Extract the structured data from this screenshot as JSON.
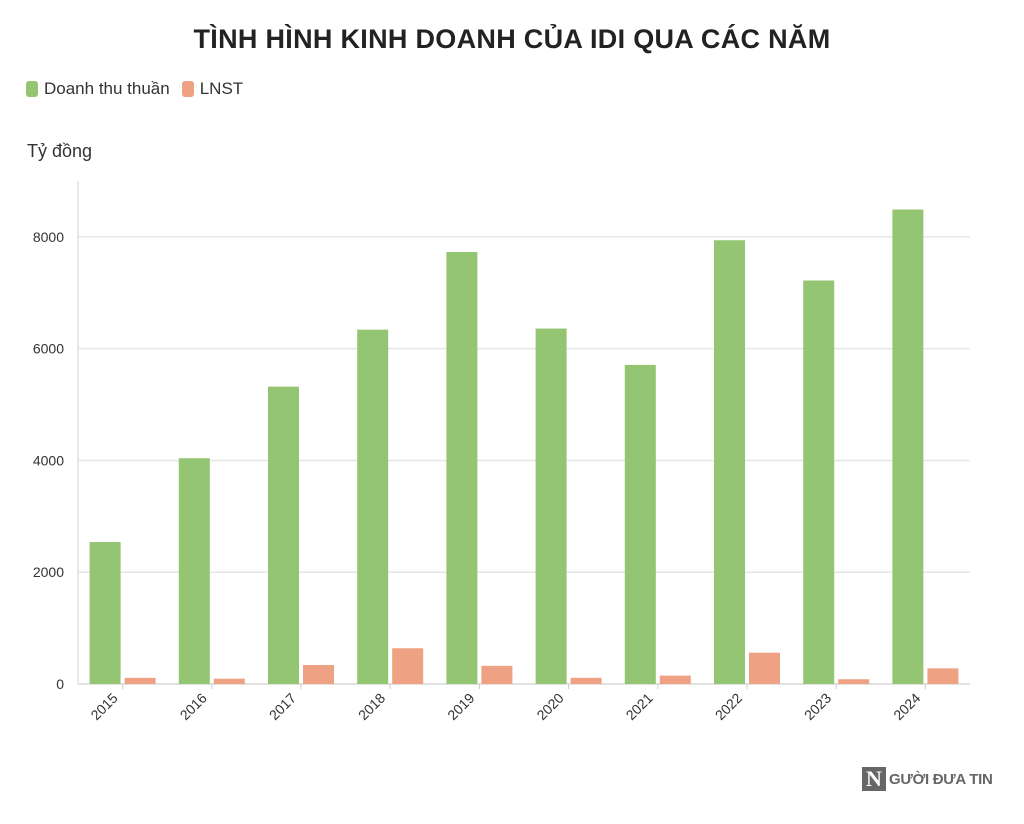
{
  "chart_data": {
    "type": "bar",
    "title": "TÌNH HÌNH KINH DOANH CỦA IDI QUA CÁC NĂM",
    "ylabel": "Tỷ đồng",
    "xlabel": "",
    "categories": [
      "2015",
      "2016",
      "2017",
      "2018",
      "2019",
      "2020",
      "2021",
      "2022",
      "2023",
      "2024"
    ],
    "series": [
      {
        "name": "Doanh thu thuần",
        "color": "#93c572",
        "values": [
          2540,
          4040,
          5320,
          6340,
          7730,
          6360,
          5710,
          7940,
          7220,
          8490
        ]
      },
      {
        "name": "LNST",
        "color": "#eea283",
        "values": [
          110,
          95,
          340,
          640,
          325,
          110,
          150,
          560,
          85,
          280
        ]
      }
    ],
    "ylim": [
      0,
      9000
    ],
    "yticks": [
      0,
      2000,
      4000,
      6000,
      8000
    ],
    "grid": true,
    "legend": "top-left"
  },
  "brand": {
    "logo_letter": "N",
    "name": "GƯỜI ĐƯA TIN"
  }
}
